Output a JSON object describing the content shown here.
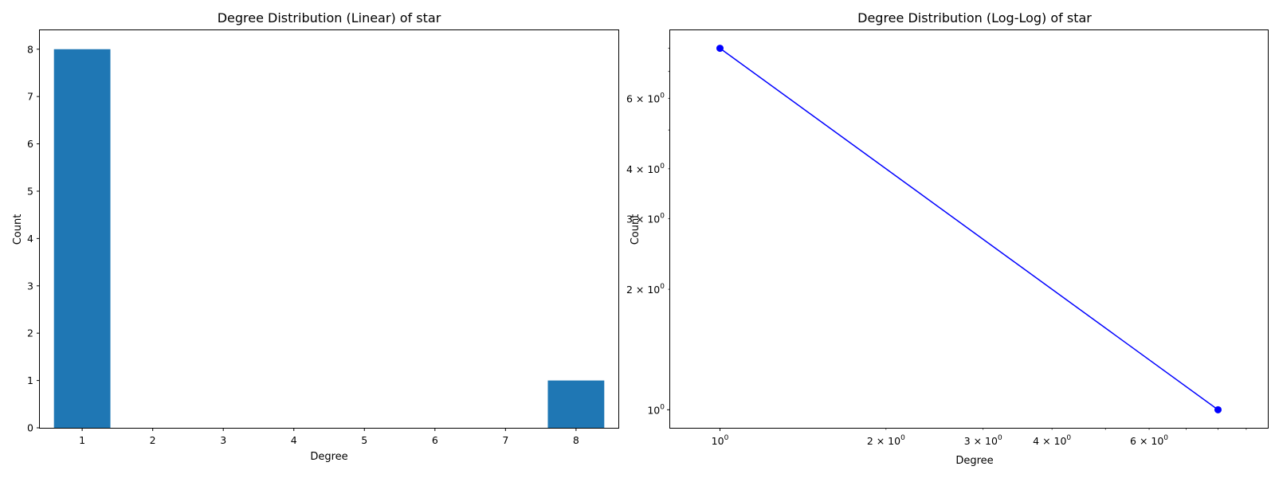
{
  "chart_data": [
    {
      "type": "bar",
      "title": "Degree Distribution (Linear) of star",
      "xlabel": "Degree",
      "ylabel": "Count",
      "categories": [
        1,
        2,
        3,
        4,
        5,
        6,
        7,
        8
      ],
      "values": [
        8,
        0,
        0,
        0,
        0,
        0,
        0,
        1
      ],
      "xlim": [
        0.4,
        8.6
      ],
      "ylim": [
        0,
        8.4
      ],
      "xticks": [
        "1",
        "2",
        "3",
        "4",
        "5",
        "6",
        "7",
        "8"
      ],
      "yticks": [
        "0",
        "1",
        "2",
        "3",
        "4",
        "5",
        "6",
        "7",
        "8"
      ],
      "color": "#1f77b4",
      "grid": false
    },
    {
      "type": "line",
      "title": "Degree Distribution (Log-Log) of star",
      "xlabel": "Degree",
      "ylabel": "Count",
      "xscale": "log",
      "yscale": "log",
      "x": [
        1,
        8
      ],
      "y": [
        8,
        1
      ],
      "marker": "circle",
      "color": "#0000ff",
      "grid": false,
      "xticks": [
        {
          "value": 1,
          "base": "10",
          "exp": "0"
        },
        {
          "value": 2,
          "base": "2 × 10",
          "exp": "0"
        },
        {
          "value": 3,
          "base": "3 × 10",
          "exp": "0"
        },
        {
          "value": 4,
          "base": "4 × 10",
          "exp": "0"
        },
        {
          "value": 6,
          "base": "6 × 10",
          "exp": "0"
        }
      ],
      "yticks": [
        {
          "value": 1,
          "base": "10",
          "exp": "0"
        },
        {
          "value": 2,
          "base": "2 × 10",
          "exp": "0"
        },
        {
          "value": 3,
          "base": "3 × 10",
          "exp": "0"
        },
        {
          "value": 4,
          "base": "4 × 10",
          "exp": "0"
        },
        {
          "value": 6,
          "base": "6 × 10",
          "exp": "0"
        }
      ]
    }
  ]
}
